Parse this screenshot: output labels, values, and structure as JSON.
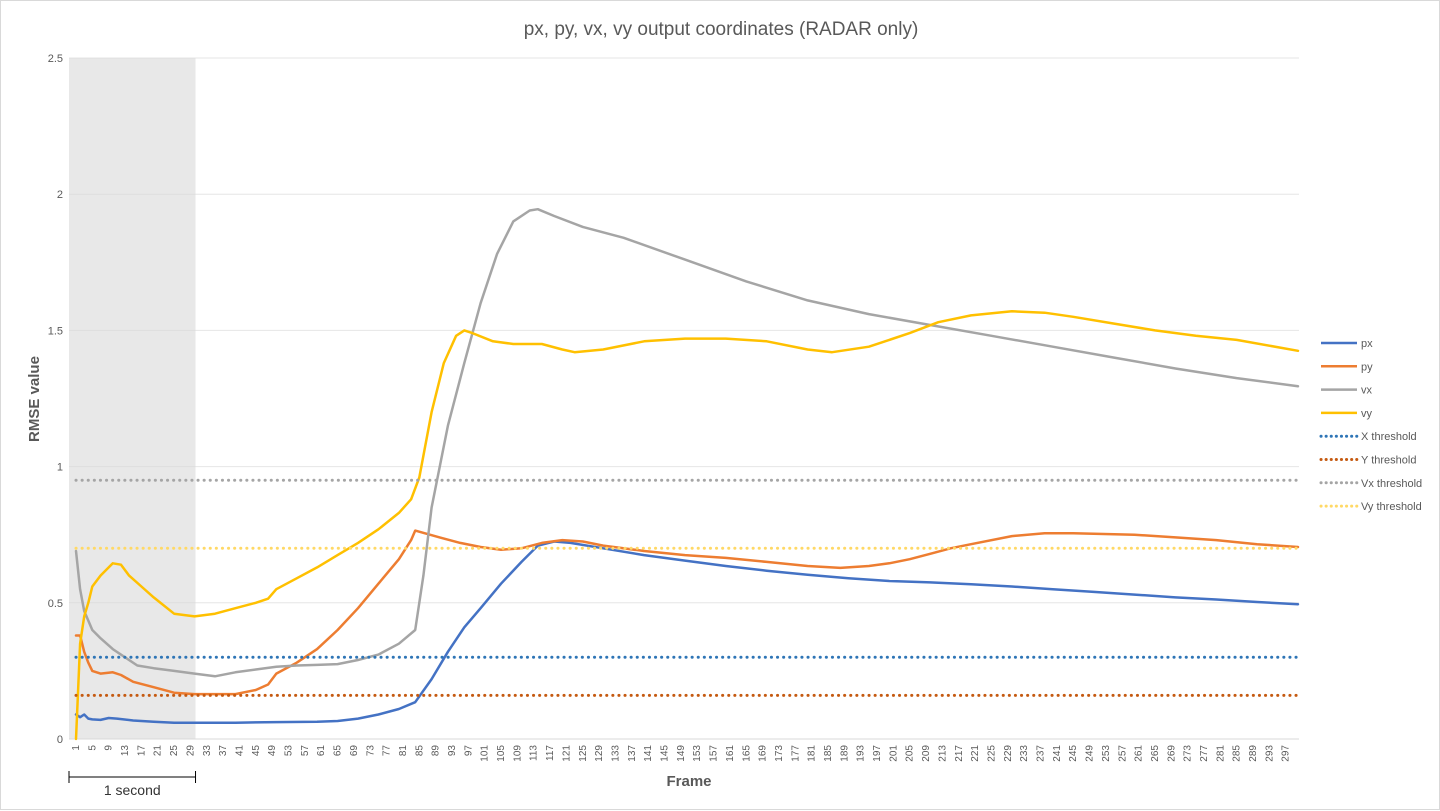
{
  "chart_data": {
    "type": "line",
    "title": "px, py, vx, vy output coordinates (RADAR only)",
    "xlabel": "Frame",
    "ylabel": "RMSE value",
    "xlim": [
      1,
      300
    ],
    "ylim": [
      0,
      2.5
    ],
    "y_ticks": [
      "0",
      "0.5",
      "1",
      "1.5",
      "2",
      "2.5"
    ],
    "y_tick_values": [
      0,
      0.5,
      1,
      1.5,
      2,
      2.5
    ],
    "x_tick_start": 1,
    "x_tick_step": 4,
    "x_tick_end": 297,
    "grid": "horizontal",
    "legend_position": "right",
    "shaded_region": {
      "x_start": 1,
      "x_end": 30,
      "color": "#d9d9d9"
    },
    "annotation": {
      "text": "1 second",
      "x_start": 1,
      "x_end": 30
    },
    "series": [
      {
        "name": "px",
        "color": "#4472c4",
        "style": "solid",
        "points": [
          [
            1,
            0.09
          ],
          [
            2,
            0.08
          ],
          [
            3,
            0.09
          ],
          [
            4,
            0.075
          ],
          [
            5,
            0.072
          ],
          [
            7,
            0.07
          ],
          [
            9,
            0.077
          ],
          [
            11,
            0.075
          ],
          [
            15,
            0.068
          ],
          [
            20,
            0.063
          ],
          [
            25,
            0.06
          ],
          [
            30,
            0.06
          ],
          [
            40,
            0.06
          ],
          [
            50,
            0.062
          ],
          [
            60,
            0.063
          ],
          [
            65,
            0.066
          ],
          [
            70,
            0.075
          ],
          [
            75,
            0.09
          ],
          [
            80,
            0.11
          ],
          [
            84,
            0.135
          ],
          [
            88,
            0.22
          ],
          [
            92,
            0.32
          ],
          [
            96,
            0.41
          ],
          [
            100,
            0.48
          ],
          [
            105,
            0.57
          ],
          [
            110,
            0.65
          ],
          [
            114,
            0.71
          ],
          [
            118,
            0.725
          ],
          [
            122,
            0.72
          ],
          [
            130,
            0.7
          ],
          [
            140,
            0.675
          ],
          [
            150,
            0.655
          ],
          [
            160,
            0.635
          ],
          [
            170,
            0.618
          ],
          [
            180,
            0.603
          ],
          [
            190,
            0.59
          ],
          [
            200,
            0.58
          ],
          [
            210,
            0.575
          ],
          [
            220,
            0.568
          ],
          [
            230,
            0.56
          ],
          [
            240,
            0.55
          ],
          [
            250,
            0.54
          ],
          [
            260,
            0.53
          ],
          [
            270,
            0.52
          ],
          [
            280,
            0.512
          ],
          [
            290,
            0.503
          ],
          [
            300,
            0.495
          ]
        ]
      },
      {
        "name": "py",
        "color": "#ed7d31",
        "style": "solid",
        "points": [
          [
            1,
            0.38
          ],
          [
            2,
            0.38
          ],
          [
            3,
            0.32
          ],
          [
            4,
            0.28
          ],
          [
            5,
            0.25
          ],
          [
            7,
            0.24
          ],
          [
            10,
            0.245
          ],
          [
            12,
            0.235
          ],
          [
            15,
            0.21
          ],
          [
            20,
            0.19
          ],
          [
            25,
            0.17
          ],
          [
            30,
            0.165
          ],
          [
            40,
            0.165
          ],
          [
            45,
            0.18
          ],
          [
            48,
            0.2
          ],
          [
            50,
            0.24
          ],
          [
            55,
            0.28
          ],
          [
            60,
            0.33
          ],
          [
            65,
            0.4
          ],
          [
            70,
            0.48
          ],
          [
            75,
            0.57
          ],
          [
            80,
            0.66
          ],
          [
            83,
            0.73
          ],
          [
            84,
            0.765
          ],
          [
            90,
            0.74
          ],
          [
            95,
            0.72
          ],
          [
            100,
            0.705
          ],
          [
            105,
            0.695
          ],
          [
            110,
            0.7
          ],
          [
            115,
            0.72
          ],
          [
            120,
            0.73
          ],
          [
            125,
            0.725
          ],
          [
            130,
            0.71
          ],
          [
            140,
            0.69
          ],
          [
            150,
            0.675
          ],
          [
            160,
            0.665
          ],
          [
            170,
            0.65
          ],
          [
            180,
            0.635
          ],
          [
            188,
            0.628
          ],
          [
            195,
            0.635
          ],
          [
            200,
            0.645
          ],
          [
            205,
            0.66
          ],
          [
            210,
            0.68
          ],
          [
            215,
            0.7
          ],
          [
            220,
            0.715
          ],
          [
            230,
            0.745
          ],
          [
            238,
            0.755
          ],
          [
            245,
            0.755
          ],
          [
            260,
            0.75
          ],
          [
            270,
            0.74
          ],
          [
            280,
            0.73
          ],
          [
            290,
            0.715
          ],
          [
            300,
            0.705
          ]
        ]
      },
      {
        "name": "vx",
        "color": "#a5a5a5",
        "style": "solid",
        "points": [
          [
            1,
            0.69
          ],
          [
            2,
            0.55
          ],
          [
            3,
            0.47
          ],
          [
            5,
            0.4
          ],
          [
            7,
            0.37
          ],
          [
            10,
            0.33
          ],
          [
            13,
            0.3
          ],
          [
            16,
            0.27
          ],
          [
            20,
            0.26
          ],
          [
            25,
            0.25
          ],
          [
            30,
            0.24
          ],
          [
            35,
            0.23
          ],
          [
            40,
            0.245
          ],
          [
            45,
            0.255
          ],
          [
            50,
            0.265
          ],
          [
            55,
            0.27
          ],
          [
            60,
            0.272
          ],
          [
            65,
            0.275
          ],
          [
            70,
            0.29
          ],
          [
            75,
            0.31
          ],
          [
            80,
            0.35
          ],
          [
            84,
            0.4
          ],
          [
            86,
            0.6
          ],
          [
            88,
            0.85
          ],
          [
            92,
            1.15
          ],
          [
            96,
            1.38
          ],
          [
            100,
            1.6
          ],
          [
            104,
            1.78
          ],
          [
            108,
            1.9
          ],
          [
            112,
            1.94
          ],
          [
            114,
            1.945
          ],
          [
            118,
            1.92
          ],
          [
            125,
            1.88
          ],
          [
            135,
            1.84
          ],
          [
            150,
            1.76
          ],
          [
            165,
            1.68
          ],
          [
            180,
            1.61
          ],
          [
            195,
            1.56
          ],
          [
            210,
            1.52
          ],
          [
            225,
            1.48
          ],
          [
            240,
            1.44
          ],
          [
            255,
            1.4
          ],
          [
            270,
            1.36
          ],
          [
            285,
            1.325
          ],
          [
            300,
            1.295
          ]
        ]
      },
      {
        "name": "vy",
        "color": "#ffc000",
        "style": "solid",
        "points": [
          [
            1,
            0.0
          ],
          [
            2,
            0.35
          ],
          [
            3,
            0.45
          ],
          [
            4,
            0.5
          ],
          [
            5,
            0.56
          ],
          [
            7,
            0.6
          ],
          [
            9,
            0.63
          ],
          [
            10,
            0.645
          ],
          [
            12,
            0.64
          ],
          [
            14,
            0.6
          ],
          [
            17,
            0.56
          ],
          [
            20,
            0.52
          ],
          [
            25,
            0.46
          ],
          [
            30,
            0.45
          ],
          [
            35,
            0.46
          ],
          [
            40,
            0.48
          ],
          [
            45,
            0.5
          ],
          [
            48,
            0.515
          ],
          [
            50,
            0.55
          ],
          [
            55,
            0.59
          ],
          [
            60,
            0.63
          ],
          [
            65,
            0.675
          ],
          [
            70,
            0.72
          ],
          [
            75,
            0.77
          ],
          [
            80,
            0.83
          ],
          [
            83,
            0.88
          ],
          [
            85,
            0.96
          ],
          [
            88,
            1.2
          ],
          [
            91,
            1.38
          ],
          [
            94,
            1.48
          ],
          [
            96,
            1.5
          ],
          [
            98,
            1.49
          ],
          [
            103,
            1.46
          ],
          [
            108,
            1.45
          ],
          [
            115,
            1.45
          ],
          [
            120,
            1.43
          ],
          [
            123,
            1.42
          ],
          [
            130,
            1.43
          ],
          [
            140,
            1.46
          ],
          [
            150,
            1.47
          ],
          [
            160,
            1.47
          ],
          [
            170,
            1.46
          ],
          [
            180,
            1.43
          ],
          [
            186,
            1.42
          ],
          [
            195,
            1.44
          ],
          [
            205,
            1.49
          ],
          [
            212,
            1.53
          ],
          [
            220,
            1.555
          ],
          [
            230,
            1.57
          ],
          [
            238,
            1.565
          ],
          [
            245,
            1.55
          ],
          [
            255,
            1.525
          ],
          [
            265,
            1.5
          ],
          [
            275,
            1.48
          ],
          [
            285,
            1.465
          ],
          [
            300,
            1.425
          ]
        ]
      },
      {
        "name": "X threshold",
        "color": "#2e75b6",
        "style": "dotted",
        "points": [
          [
            1,
            0.3
          ],
          [
            300,
            0.3
          ]
        ]
      },
      {
        "name": "Y threshold",
        "color": "#c55a11",
        "style": "dotted",
        "points": [
          [
            1,
            0.16
          ],
          [
            300,
            0.16
          ]
        ]
      },
      {
        "name": "Vx threshold",
        "color": "#a5a5a5",
        "style": "dotted",
        "points": [
          [
            1,
            0.95
          ],
          [
            300,
            0.95
          ]
        ]
      },
      {
        "name": "Vy threshold",
        "color": "#ffd966",
        "style": "dotted",
        "points": [
          [
            1,
            0.7
          ],
          [
            300,
            0.7
          ]
        ]
      }
    ]
  }
}
